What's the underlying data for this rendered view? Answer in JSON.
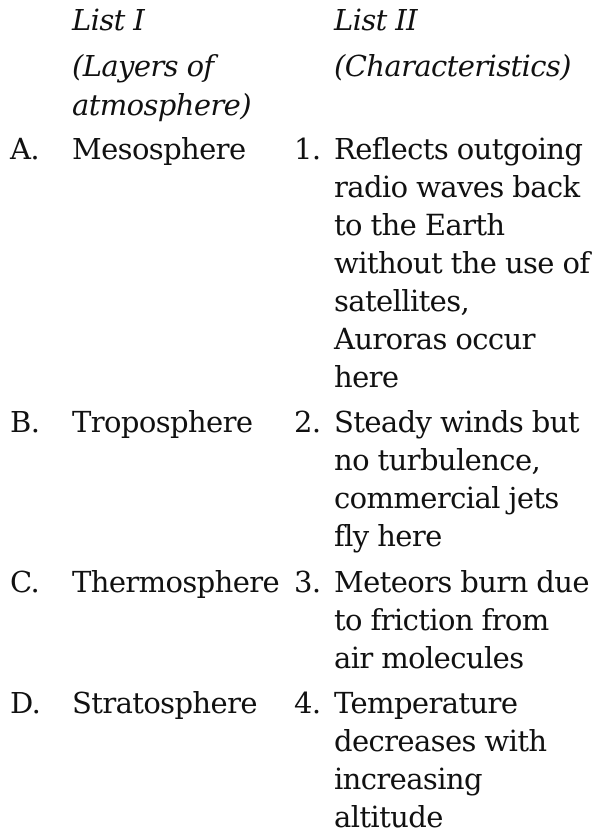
{
  "headers": {
    "list1_title": "List I",
    "list1_sub1": "(Layers of",
    "list1_sub2": "atmosphere)",
    "list2_title": "List II",
    "list2_sub1": "(Characteristics)"
  },
  "list1": [
    {
      "letter": "A.",
      "name": "Mesosphere"
    },
    {
      "letter": "B.",
      "name": "Troposphere"
    },
    {
      "letter": "C.",
      "name": "Thermosphere"
    },
    {
      "letter": "D.",
      "name": "Stratosphere"
    }
  ],
  "list2": [
    {
      "num": "1.",
      "lines": [
        "Reflects outgoing",
        "radio waves back",
        "to the Earth",
        "without the use of",
        "satellites,",
        "Auroras occur",
        "here"
      ]
    },
    {
      "num": "2.",
      "lines": [
        "Steady winds but",
        "no turbulence,",
        "commercial jets",
        "fly here"
      ]
    },
    {
      "num": "3.",
      "lines": [
        "Meteors burn due",
        "to friction from",
        "air molecules"
      ]
    },
    {
      "num": "4.",
      "lines": [
        "Temperature",
        "decreases with",
        "increasing",
        "altitude"
      ]
    }
  ]
}
